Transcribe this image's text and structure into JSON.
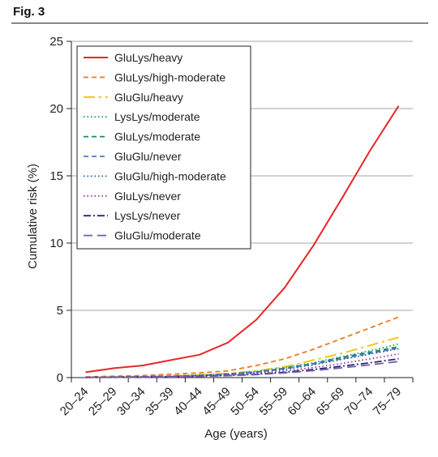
{
  "figure_label": "Fig. 3",
  "chart_data": {
    "type": "line",
    "xlabel": "Age (years)",
    "ylabel": "Cumulative risk (%)",
    "ylim": [
      0,
      25
    ],
    "yticks": [
      0,
      5,
      10,
      15,
      20,
      25
    ],
    "grid": "horizontal",
    "legend_position": "top-left",
    "categories": [
      "20–24",
      "25–29",
      "30–34",
      "35–39",
      "40–44",
      "45–49",
      "50–54",
      "55–59",
      "60–64",
      "65–69",
      "70–74",
      "75–79"
    ],
    "series": [
      {
        "name": "GluLys/heavy",
        "color": "#e8262a",
        "dash": "solid",
        "values": [
          0.4,
          0.7,
          0.9,
          1.3,
          1.7,
          2.6,
          4.3,
          6.7,
          9.8,
          13.3,
          16.9,
          20.2
        ]
      },
      {
        "name": "GluLys/high-moderate",
        "color": "#f07a22",
        "dash": "dashed",
        "values": [
          0.05,
          0.1,
          0.15,
          0.25,
          0.35,
          0.5,
          0.9,
          1.4,
          2.1,
          2.9,
          3.7,
          4.5
        ]
      },
      {
        "name": "GluGlu/heavy",
        "color": "#f2c200",
        "dash": "longdash-dot",
        "values": [
          0.02,
          0.05,
          0.08,
          0.12,
          0.2,
          0.3,
          0.5,
          0.8,
          1.3,
          1.8,
          2.4,
          3.0
        ]
      },
      {
        "name": "LysLys/moderate",
        "color": "#1f9e4a",
        "dash": "dotted",
        "values": [
          0.02,
          0.04,
          0.07,
          0.1,
          0.18,
          0.28,
          0.45,
          0.75,
          1.1,
          1.55,
          2.0,
          2.5
        ]
      },
      {
        "name": "GluLys/moderate",
        "color": "#1a8a6a",
        "dash": "dashed",
        "values": [
          0.02,
          0.04,
          0.07,
          0.1,
          0.17,
          0.27,
          0.42,
          0.7,
          1.05,
          1.5,
          1.9,
          2.3
        ]
      },
      {
        "name": "GluGlu/never",
        "color": "#5577c8",
        "dash": "dashed",
        "values": [
          0.02,
          0.04,
          0.06,
          0.09,
          0.15,
          0.24,
          0.4,
          0.65,
          1.0,
          1.4,
          1.8,
          2.2
        ]
      },
      {
        "name": "GluGlu/high-moderate",
        "color": "#1b5fa0",
        "dash": "dotted",
        "values": [
          0.02,
          0.04,
          0.06,
          0.09,
          0.15,
          0.23,
          0.38,
          0.62,
          0.95,
          1.35,
          1.75,
          2.15
        ]
      },
      {
        "name": "GluLys/never",
        "color": "#9b2fae",
        "dash": "dotted",
        "values": [
          0.01,
          0.03,
          0.05,
          0.07,
          0.12,
          0.2,
          0.32,
          0.5,
          0.75,
          1.05,
          1.4,
          1.75
        ]
      },
      {
        "name": "LysLys/never",
        "color": "#222a78",
        "dash": "dashdot",
        "values": [
          0.01,
          0.02,
          0.04,
          0.06,
          0.1,
          0.16,
          0.25,
          0.4,
          0.6,
          0.85,
          1.1,
          1.4
        ]
      },
      {
        "name": "GluGlu/moderate",
        "color": "#7a5aa8",
        "dash": "longdash",
        "values": [
          0.01,
          0.02,
          0.04,
          0.05,
          0.09,
          0.14,
          0.22,
          0.35,
          0.52,
          0.72,
          0.95,
          1.2
        ]
      }
    ]
  }
}
